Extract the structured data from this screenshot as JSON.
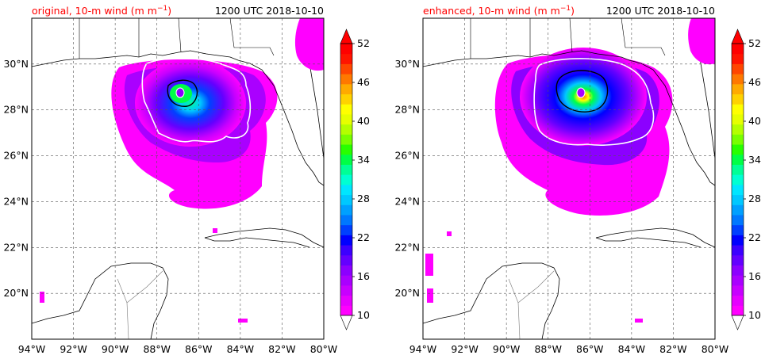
{
  "panels": [
    {
      "title_left": "original, 10-m wind (m m",
      "title_left_sup": "−1",
      "title_left_close": ")",
      "title_right": "1200 UTC 2018-10-10",
      "lat_ticks": [
        "30°N",
        "28°N",
        "26°N",
        "24°N",
        "22°N",
        "20°N"
      ],
      "lon_ticks": [
        "94°W",
        "92°W",
        "90°W",
        "88°W",
        "86°W",
        "84°W",
        "82°W",
        "80°W"
      ],
      "colorbar_ticks": [
        "52",
        "46",
        "40",
        "34",
        "28",
        "22",
        "16",
        "10"
      ]
    },
    {
      "title_left": "enhanced, 10-m wind (m m",
      "title_left_sup": "−1",
      "title_left_close": ")",
      "title_right": "1200 UTC 2018-10-10",
      "lat_ticks": [
        "30°N",
        "28°N",
        "26°N",
        "24°N",
        "22°N",
        "20°N"
      ],
      "lon_ticks": [
        "94°W",
        "92°W",
        "90°W",
        "88°W",
        "86°W",
        "84°W",
        "82°W",
        "80°W"
      ],
      "colorbar_ticks": [
        "52",
        "46",
        "40",
        "34",
        "28",
        "22",
        "16",
        "10"
      ]
    }
  ],
  "colorbar": {
    "min": 10,
    "max": 52,
    "step": 2,
    "extend": "both",
    "colors": [
      "#ff00ff",
      "#e600ff",
      "#c800ff",
      "#aa00ff",
      "#8c00ff",
      "#6400ff",
      "#3c00ff",
      "#0000ff",
      "#0040ff",
      "#0078ff",
      "#00a0ff",
      "#00c8ff",
      "#00e6ff",
      "#00ffd2",
      "#00ff96",
      "#00ff46",
      "#28ff00",
      "#78ff00",
      "#b4ff00",
      "#e6ff00",
      "#ffff00",
      "#ffd200",
      "#ffaa00",
      "#ff7800",
      "#ff4600",
      "#ff1400",
      "#ff0000"
    ]
  },
  "map": {
    "lon_range": [
      -94,
      -80
    ],
    "lat_range": [
      18,
      32
    ],
    "grid": true,
    "storm_center_lon": -86.3,
    "storm_center_lat": 28.9
  }
}
